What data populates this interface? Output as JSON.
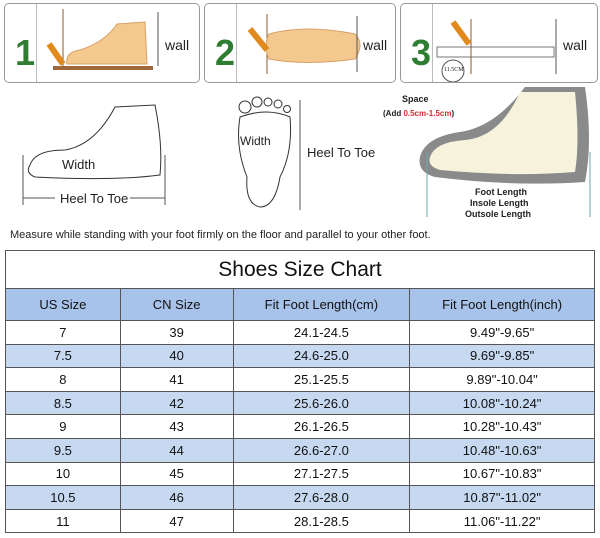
{
  "steps": [
    {
      "number": "1",
      "wall_label": "wall"
    },
    {
      "number": "2",
      "wall_label": "wall"
    },
    {
      "number": "3",
      "wall_label": "wall",
      "ruler_reading": "11.5CM"
    }
  ],
  "diagrams": {
    "side_width": "Width",
    "side_heel_to_toe": "Heel To Toe",
    "top_width": "Width",
    "top_heel_to_toe": "Heel To Toe",
    "space_title": "Space",
    "space_add_prefix": "(Add ",
    "space_add_value": "0.5cm-1.5cm",
    "space_add_suffix": ")",
    "foot_length": "Foot Length",
    "insole_length": "Insole Length",
    "outsole_length": "Outsole Length"
  },
  "note": "Measure while standing with your foot firmly on the floor and parallel to your other foot.",
  "colors": {
    "header_bg": "#a8c3ea",
    "alt_row_bg": "#c6d9f1",
    "step_number": "#2e7d32",
    "space_value": "#d32f2f"
  },
  "table": {
    "title": "Shoes Size Chart",
    "headers": [
      "US Size",
      "CN Size",
      "Fit Foot Length(cm)",
      "Fit Foot Length(inch)"
    ],
    "rows": [
      [
        "7",
        "39",
        "24.1-24.5",
        "9.49\"-9.65\""
      ],
      [
        "7.5",
        "40",
        "24.6-25.0",
        "9.69\"-9.85\""
      ],
      [
        "8",
        "41",
        "25.1-25.5",
        "9.89\"-10.04\""
      ],
      [
        "8.5",
        "42",
        "25.6-26.0",
        "10.08\"-10.24\""
      ],
      [
        "9",
        "43",
        "26.1-26.5",
        "10.28\"-10.43\""
      ],
      [
        "9.5",
        "44",
        "26.6-27.0",
        "10.48\"-10.63\""
      ],
      [
        "10",
        "45",
        "27.1-27.5",
        "10.67\"-10.83\""
      ],
      [
        "10.5",
        "46",
        "27.6-28.0",
        "10.87\"-11.02\""
      ],
      [
        "11",
        "47",
        "28.1-28.5",
        "11.06\"-11.22\""
      ]
    ]
  }
}
